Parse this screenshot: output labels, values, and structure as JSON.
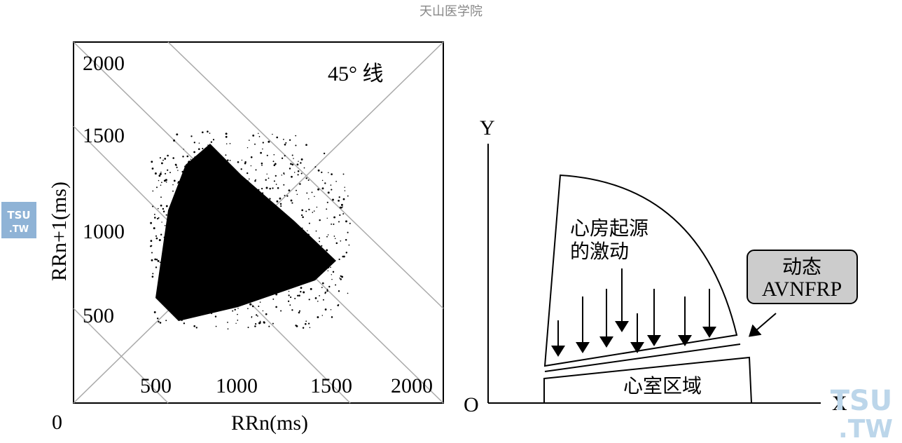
{
  "watermark_top": "天山医学院",
  "left_panel": {
    "y_label": "RRn+1(ms)",
    "x_label": "RRn(ms)",
    "origin": "0",
    "y_ticks": [
      "2000",
      "1500",
      "1000",
      "500"
    ],
    "x_ticks": [
      "500",
      "1000",
      "1500",
      "2000"
    ],
    "annotation": "45° 线"
  },
  "right_panel": {
    "y_axis": "Y",
    "x_axis": "X",
    "origin": "O",
    "atrial_label": [
      "心房起源",
      "的激动"
    ],
    "ventricle_label": "心室区域",
    "callout": [
      "动态",
      "AVNFRP"
    ]
  },
  "logo_left": [
    "TSU",
    ".TW"
  ],
  "logo_right": [
    "TSU",
    ".TW"
  ]
}
